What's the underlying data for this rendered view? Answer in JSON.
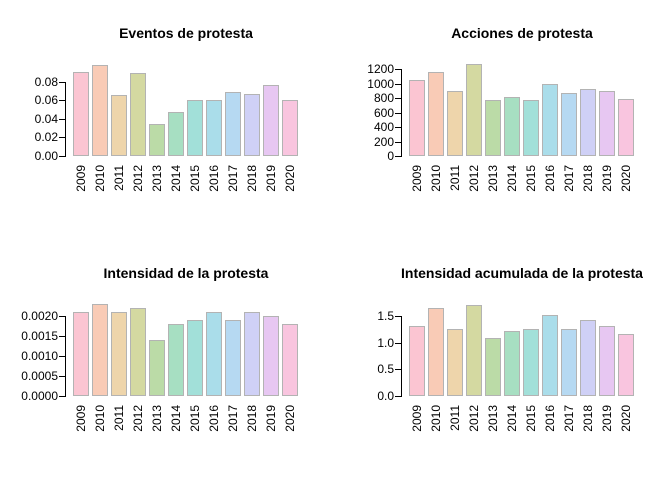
{
  "page": {
    "background": "#ffffff",
    "description": "2x2 grid of pastel bar charts of protest statistics by year"
  },
  "palette": {
    "bar_fills": [
      "#fbc5d2",
      "#f9cbb6",
      "#eed5ab",
      "#d4d9a1",
      "#bbdba7",
      "#a7dfc2",
      "#a2e0d9",
      "#aaddea",
      "#b6d9f2",
      "#cfd0f6",
      "#e7c7f2",
      "#f9c5df"
    ],
    "bar_border": "#b3b3b3",
    "axis_color": "#000000",
    "text_color": "#000000"
  },
  "chart_data": [
    {
      "id": "eventos",
      "type": "bar",
      "title": "Eventos de protesta",
      "categories": [
        "2009",
        "2010",
        "2011",
        "2012",
        "2013",
        "2014",
        "2015",
        "2016",
        "2017",
        "2018",
        "2019",
        "2020"
      ],
      "values": [
        0.091,
        0.098,
        0.066,
        0.09,
        0.035,
        0.047,
        0.061,
        0.061,
        0.069,
        0.067,
        0.077,
        0.061
      ],
      "yticks": [
        {
          "value": 0.0,
          "label": "0.00"
        },
        {
          "value": 0.02,
          "label": "0.02"
        },
        {
          "value": 0.04,
          "label": "0.04"
        },
        {
          "value": 0.06,
          "label": "0.06"
        },
        {
          "value": 0.08,
          "label": "0.08"
        }
      ],
      "ylim": [
        0,
        0.108
      ],
      "xlabel": "",
      "ylabel": "",
      "grid": false,
      "legend": "none"
    },
    {
      "id": "acciones",
      "type": "bar",
      "title": "Acciones de protesta",
      "categories": [
        "2009",
        "2010",
        "2011",
        "2012",
        "2013",
        "2014",
        "2015",
        "2016",
        "2017",
        "2018",
        "2019",
        "2020"
      ],
      "values": [
        1050,
        1155,
        900,
        1265,
        775,
        815,
        775,
        990,
        865,
        925,
        900,
        790
      ],
      "yticks": [
        {
          "value": 0,
          "label": "0"
        },
        {
          "value": 200,
          "label": "200"
        },
        {
          "value": 400,
          "label": "400"
        },
        {
          "value": 600,
          "label": "600"
        },
        {
          "value": 800,
          "label": "800"
        },
        {
          "value": 1000,
          "label": "1000"
        },
        {
          "value": 1200,
          "label": "1200"
        }
      ],
      "ylim": [
        0,
        1380
      ],
      "xlabel": "",
      "ylabel": "",
      "grid": false,
      "legend": "none"
    },
    {
      "id": "intensidad",
      "type": "bar",
      "title": "Intensidad de la protesta",
      "categories": [
        "2009",
        "2010",
        "2011",
        "2012",
        "2013",
        "2014",
        "2015",
        "2016",
        "2017",
        "2018",
        "2019",
        "2020"
      ],
      "values": [
        0.0021,
        0.0023,
        0.0021,
        0.0022,
        0.0014,
        0.0018,
        0.0019,
        0.0021,
        0.0019,
        0.0021,
        0.002,
        0.0018
      ],
      "yticks": [
        {
          "value": 0.0,
          "label": "0.0000"
        },
        {
          "value": 0.0005,
          "label": "0.0005"
        },
        {
          "value": 0.001,
          "label": "0.0010"
        },
        {
          "value": 0.0015,
          "label": "0.0015"
        },
        {
          "value": 0.002,
          "label": "0.0020"
        }
      ],
      "ylim": [
        0,
        0.0025
      ],
      "xlabel": "",
      "ylabel": "",
      "grid": false,
      "legend": "none"
    },
    {
      "id": "intensidad-acumulada",
      "type": "bar",
      "title": "Intensidad acumulada de la protesta",
      "categories": [
        "2009",
        "2010",
        "2011",
        "2012",
        "2013",
        "2014",
        "2015",
        "2016",
        "2017",
        "2018",
        "2019",
        "2020"
      ],
      "values": [
        1.3,
        1.64,
        1.25,
        1.7,
        1.08,
        1.22,
        1.26,
        1.51,
        1.26,
        1.42,
        1.31,
        1.16
      ],
      "yticks": [
        {
          "value": 0.0,
          "label": "0.0"
        },
        {
          "value": 0.5,
          "label": "0.5"
        },
        {
          "value": 1.0,
          "label": "1.0"
        },
        {
          "value": 1.5,
          "label": "1.5"
        }
      ],
      "ylim": [
        0,
        1.87
      ],
      "xlabel": "",
      "ylabel": "",
      "grid": false,
      "legend": "none"
    }
  ]
}
